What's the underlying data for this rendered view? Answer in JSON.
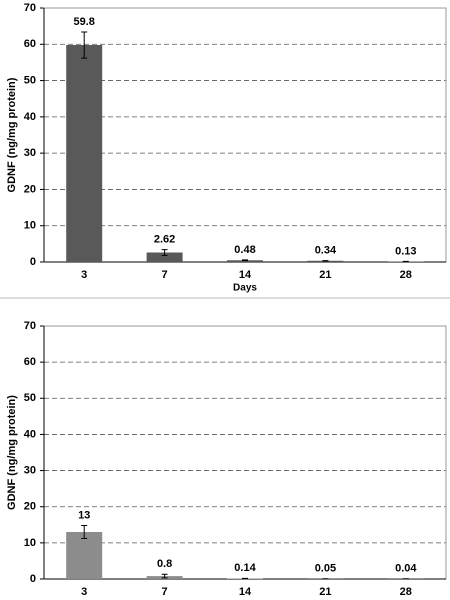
{
  "chart_data": [
    {
      "type": "bar",
      "ylabel": "GDNF (ng/mg protein)",
      "xlabel": "Days",
      "categories": [
        "3",
        "7",
        "14",
        "21",
        "28"
      ],
      "values": [
        59.8,
        2.62,
        0.48,
        0.34,
        0.13
      ],
      "errors": [
        3.6,
        0.8,
        0.1,
        0.05,
        0.03
      ],
      "color": "#595959",
      "ylim": [
        0,
        70
      ],
      "yticks": [
        0,
        10,
        20,
        30,
        40,
        50,
        60,
        70
      ],
      "grid": true
    },
    {
      "type": "bar",
      "ylabel": "GDNF (ng/mg protein)",
      "categories": [
        "3",
        "7",
        "14",
        "21",
        "28"
      ],
      "values": [
        13,
        0.8,
        0.14,
        0.05,
        0.04
      ],
      "errors": [
        1.8,
        0.5,
        0.05,
        0.02,
        0.02
      ],
      "color": "#8c8c8c",
      "ylim": [
        0,
        70
      ],
      "yticks": [
        0,
        10,
        20,
        30,
        40,
        50,
        60,
        70
      ],
      "grid": true
    }
  ]
}
